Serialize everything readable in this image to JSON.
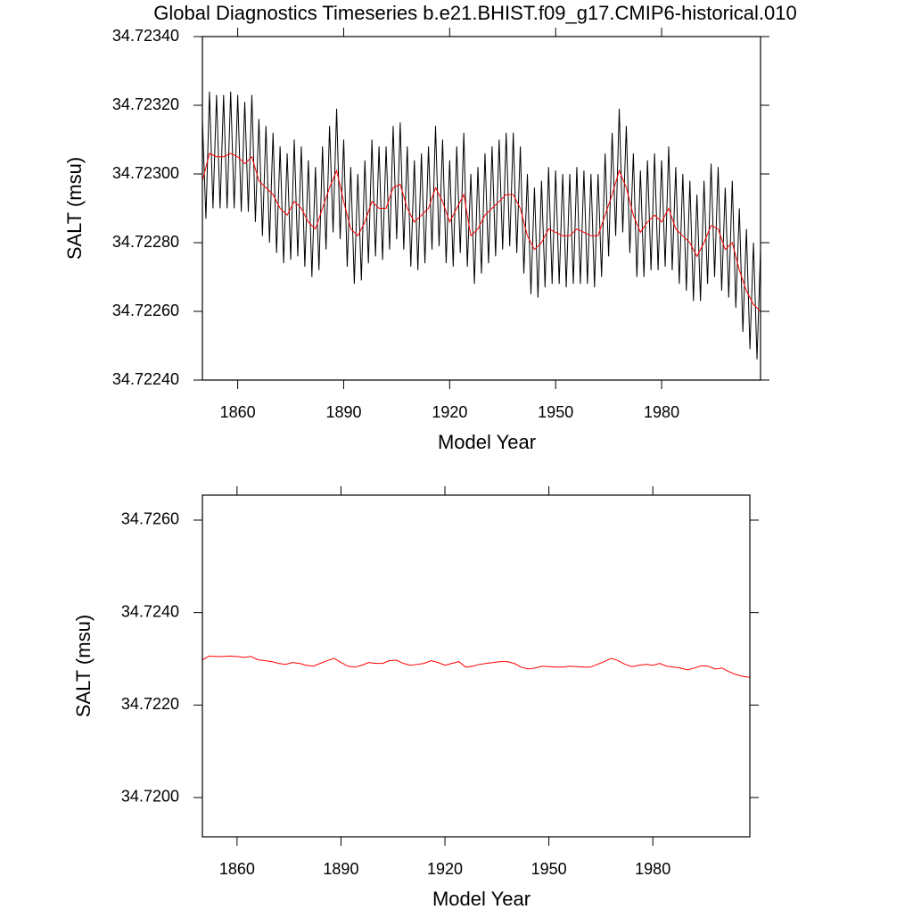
{
  "chart_data": [
    {
      "type": "line",
      "title": "Global Diagnostics Timeseries b.e21.BHIST.f09_g17.CMIP6-historical.010",
      "xlabel": "Model Year",
      "ylabel": "SALT (msu)",
      "xlim": [
        1850,
        2008
      ],
      "xticks": [
        1860,
        1890,
        1920,
        1950,
        1980
      ],
      "ylim": [
        34.7224,
        34.7234
      ],
      "yticks": [
        {
          "value": 34.7224,
          "label": "34.72240"
        },
        {
          "value": 34.7226,
          "label": "34.72260"
        },
        {
          "value": 34.7228,
          "label": "34.72280"
        },
        {
          "value": 34.723,
          "label": "34.72300"
        },
        {
          "value": 34.7232,
          "label": "34.72320"
        },
        {
          "value": 34.7234,
          "label": "34.72340"
        }
      ],
      "series": [
        {
          "color": "#000000",
          "x": [
            1850,
            1851,
            1852,
            1853,
            1854,
            1855,
            1856,
            1857,
            1858,
            1859,
            1860,
            1861,
            1862,
            1863,
            1864,
            1865,
            1866,
            1867,
            1868,
            1869,
            1870,
            1871,
            1872,
            1873,
            1874,
            1875,
            1876,
            1877,
            1878,
            1879,
            1880,
            1881,
            1882,
            1883,
            1884,
            1885,
            1886,
            1887,
            1888,
            1889,
            1890,
            1891,
            1892,
            1893,
            1894,
            1895,
            1896,
            1897,
            1898,
            1899,
            1900,
            1901,
            1902,
            1903,
            1904,
            1905,
            1906,
            1907,
            1908,
            1909,
            1910,
            1911,
            1912,
            1913,
            1914,
            1915,
            1916,
            1917,
            1918,
            1919,
            1920,
            1921,
            1922,
            1923,
            1924,
            1925,
            1926,
            1927,
            1928,
            1929,
            1930,
            1931,
            1932,
            1933,
            1934,
            1935,
            1936,
            1937,
            1938,
            1939,
            1940,
            1941,
            1942,
            1943,
            1944,
            1945,
            1946,
            1947,
            1948,
            1949,
            1950,
            1951,
            1952,
            1953,
            1954,
            1955,
            1956,
            1957,
            1958,
            1959,
            1960,
            1961,
            1962,
            1963,
            1964,
            1965,
            1966,
            1967,
            1968,
            1969,
            1970,
            1971,
            1972,
            1973,
            1974,
            1975,
            1976,
            1977,
            1978,
            1979,
            1980,
            1981,
            1982,
            1983,
            1984,
            1985,
            1986,
            1987,
            1988,
            1989,
            1990,
            1991,
            1992,
            1993,
            1994,
            1995,
            1996,
            1997,
            1998,
            1999,
            2000,
            2001,
            2002,
            2003,
            2004,
            2005,
            2006,
            2007,
            2008
          ],
          "values": [
            34.72316,
            34.72287,
            34.72324,
            34.7229,
            34.72323,
            34.7229,
            34.72323,
            34.7229,
            34.72324,
            34.7229,
            34.72323,
            34.72289,
            34.72321,
            34.72289,
            34.72323,
            34.72286,
            34.72316,
            34.72282,
            34.72314,
            34.7228,
            34.72312,
            34.72277,
            34.72308,
            34.72274,
            34.72306,
            34.72275,
            34.7231,
            34.72276,
            34.72308,
            34.72273,
            34.72304,
            34.7227,
            34.72302,
            34.72272,
            34.72308,
            34.72278,
            34.72314,
            34.72283,
            34.72319,
            34.72281,
            34.7231,
            34.72273,
            34.72302,
            34.72268,
            34.723,
            34.72269,
            34.72304,
            34.72274,
            34.7231,
            34.72276,
            34.72308,
            34.72275,
            34.72308,
            34.72278,
            34.72314,
            34.72281,
            34.72315,
            34.72278,
            34.72308,
            34.72273,
            34.72304,
            34.72272,
            34.72306,
            34.72274,
            34.72308,
            34.72278,
            34.72314,
            34.72279,
            34.7231,
            34.72274,
            34.72304,
            34.72273,
            34.72308,
            34.72277,
            34.72312,
            34.72273,
            34.723,
            34.72268,
            34.72302,
            34.72271,
            34.72306,
            34.72274,
            34.72308,
            34.72276,
            34.7231,
            34.72278,
            34.72312,
            34.72279,
            34.72312,
            34.72277,
            34.72308,
            34.72271,
            34.723,
            34.72265,
            34.72296,
            34.72264,
            34.72298,
            34.72267,
            34.72302,
            34.72268,
            34.72301,
            34.72268,
            34.723,
            34.72267,
            34.723,
            34.72268,
            34.72302,
            34.72268,
            34.72301,
            34.72268,
            34.723,
            34.72267,
            34.723,
            34.7227,
            34.72306,
            34.72276,
            34.72312,
            34.72282,
            34.72319,
            34.72283,
            34.72314,
            34.72277,
            34.72306,
            34.7227,
            34.72301,
            34.7227,
            34.72304,
            34.72272,
            34.72306,
            34.72272,
            34.72304,
            34.72273,
            34.72308,
            34.72272,
            34.72302,
            34.72268,
            34.723,
            34.72266,
            34.72298,
            34.72263,
            34.72294,
            34.72263,
            34.72298,
            34.72268,
            34.72303,
            34.7227,
            34.72302,
            34.72266,
            34.72296,
            34.72264,
            34.72298,
            34.72261,
            34.7229,
            34.72254,
            34.72284,
            34.72249,
            34.7228,
            34.72246,
            34.72278
          ]
        },
        {
          "color": "#ff0000",
          "x": [
            1850,
            1852,
            1854,
            1856,
            1858,
            1860,
            1862,
            1864,
            1866,
            1868,
            1870,
            1872,
            1874,
            1876,
            1878,
            1880,
            1882,
            1884,
            1886,
            1888,
            1890,
            1892,
            1894,
            1896,
            1898,
            1900,
            1902,
            1904,
            1906,
            1908,
            1910,
            1912,
            1914,
            1916,
            1918,
            1920,
            1922,
            1924,
            1926,
            1928,
            1930,
            1932,
            1934,
            1936,
            1938,
            1940,
            1942,
            1944,
            1946,
            1948,
            1950,
            1952,
            1954,
            1956,
            1958,
            1960,
            1962,
            1964,
            1966,
            1968,
            1970,
            1972,
            1974,
            1976,
            1978,
            1980,
            1982,
            1984,
            1986,
            1988,
            1990,
            1992,
            1994,
            1996,
            1998,
            2000,
            2002,
            2004,
            2006,
            2008
          ],
          "values": [
            34.72298,
            34.72306,
            34.72305,
            34.72305,
            34.72306,
            34.72305,
            34.72303,
            34.72305,
            34.72298,
            34.72296,
            34.72294,
            34.7229,
            34.72288,
            34.72292,
            34.7229,
            34.72286,
            34.72284,
            34.7229,
            34.72296,
            34.72301,
            34.72292,
            34.72284,
            34.72282,
            34.72286,
            34.72292,
            34.7229,
            34.7229,
            34.72296,
            34.72297,
            34.7229,
            34.72286,
            34.72288,
            34.7229,
            34.72296,
            34.72292,
            34.72286,
            34.7229,
            34.72294,
            34.72282,
            34.72284,
            34.72288,
            34.7229,
            34.72292,
            34.72294,
            34.72294,
            34.7229,
            34.72282,
            34.72278,
            34.7228,
            34.72284,
            34.72283,
            34.72282,
            34.72282,
            34.72284,
            34.72283,
            34.72282,
            34.72282,
            34.72288,
            34.72294,
            34.72301,
            34.72296,
            34.72288,
            34.72283,
            34.72286,
            34.72288,
            34.72286,
            34.7229,
            34.72284,
            34.72282,
            34.7228,
            34.72276,
            34.7228,
            34.72285,
            34.72284,
            34.72278,
            34.7228,
            34.72272,
            34.72266,
            34.72262,
            34.7226
          ]
        }
      ]
    },
    {
      "type": "line",
      "xlabel": "Model Year",
      "ylabel": "SALT (msu)",
      "xlim": [
        1850,
        2008
      ],
      "xticks": [
        1860,
        1890,
        1920,
        1950,
        1980
      ],
      "ylim": [
        34.71915,
        34.72654
      ],
      "yticks": [
        {
          "value": 34.72,
          "label": "34.7200"
        },
        {
          "value": 34.722,
          "label": "34.7220"
        },
        {
          "value": 34.724,
          "label": "34.7240"
        },
        {
          "value": 34.726,
          "label": "34.7260"
        }
      ],
      "series": [
        {
          "color": "#ff0000",
          "x": [
            1850,
            1852,
            1854,
            1856,
            1858,
            1860,
            1862,
            1864,
            1866,
            1868,
            1870,
            1872,
            1874,
            1876,
            1878,
            1880,
            1882,
            1884,
            1886,
            1888,
            1890,
            1892,
            1894,
            1896,
            1898,
            1900,
            1902,
            1904,
            1906,
            1908,
            1910,
            1912,
            1914,
            1916,
            1918,
            1920,
            1922,
            1924,
            1926,
            1928,
            1930,
            1932,
            1934,
            1936,
            1938,
            1940,
            1942,
            1944,
            1946,
            1948,
            1950,
            1952,
            1954,
            1956,
            1958,
            1960,
            1962,
            1964,
            1966,
            1968,
            1970,
            1972,
            1974,
            1976,
            1978,
            1980,
            1982,
            1984,
            1986,
            1988,
            1990,
            1992,
            1994,
            1996,
            1998,
            2000,
            2002,
            2004,
            2006,
            2008
          ],
          "values": [
            34.72298,
            34.72306,
            34.72305,
            34.72305,
            34.72306,
            34.72305,
            34.72303,
            34.72305,
            34.72298,
            34.72296,
            34.72294,
            34.7229,
            34.72288,
            34.72292,
            34.7229,
            34.72286,
            34.72284,
            34.7229,
            34.72296,
            34.72301,
            34.72292,
            34.72284,
            34.72282,
            34.72286,
            34.72292,
            34.7229,
            34.7229,
            34.72296,
            34.72297,
            34.7229,
            34.72286,
            34.72288,
            34.7229,
            34.72296,
            34.72292,
            34.72286,
            34.7229,
            34.72294,
            34.72282,
            34.72284,
            34.72288,
            34.7229,
            34.72292,
            34.72294,
            34.72294,
            34.7229,
            34.72282,
            34.72278,
            34.7228,
            34.72284,
            34.72283,
            34.72282,
            34.72282,
            34.72284,
            34.72283,
            34.72282,
            34.72282,
            34.72288,
            34.72294,
            34.72301,
            34.72296,
            34.72288,
            34.72283,
            34.72286,
            34.72288,
            34.72286,
            34.7229,
            34.72284,
            34.72282,
            34.7228,
            34.72276,
            34.7228,
            34.72285,
            34.72284,
            34.72278,
            34.7228,
            34.72272,
            34.72266,
            34.72262,
            34.7226
          ]
        }
      ]
    }
  ]
}
